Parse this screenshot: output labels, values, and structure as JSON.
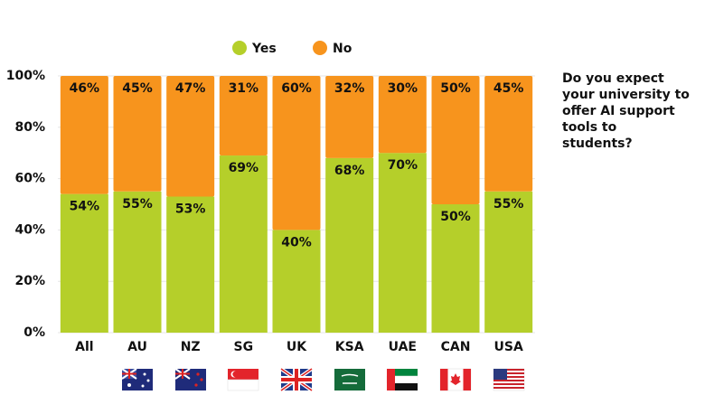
{
  "chart_data": {
    "type": "stacked_bar",
    "title": "Do you expect your university to offer AI support tools to students?",
    "categories": [
      "All",
      "AU",
      "NZ",
      "SG",
      "UK",
      "KSA",
      "UAE",
      "CAN",
      "USA"
    ],
    "series": [
      {
        "name": "Yes",
        "color": "#b5cf2a",
        "values": [
          54,
          55,
          53,
          69,
          40,
          68,
          70,
          50,
          55
        ],
        "value_labels": [
          "54%",
          "55%",
          "53%",
          "69%",
          "40%",
          "68%",
          "70%",
          "50%",
          "55%"
        ]
      },
      {
        "name": "No",
        "color": "#f7941d",
        "values": [
          46,
          45,
          47,
          31,
          60,
          32,
          30,
          50,
          45
        ],
        "value_labels": [
          "46%",
          "45%",
          "47%",
          "31%",
          "60%",
          "32%",
          "30%",
          "50%",
          "45%"
        ]
      }
    ],
    "ylim": [
      0,
      100
    ],
    "yticks": [
      {
        "value": 0,
        "label": "0%"
      },
      {
        "value": 20,
        "label": "20%"
      },
      {
        "value": 40,
        "label": "40%"
      },
      {
        "value": 60,
        "label": "60%"
      },
      {
        "value": 80,
        "label": "80%"
      },
      {
        "value": 100,
        "label": "100%"
      }
    ],
    "grid": true
  }
}
